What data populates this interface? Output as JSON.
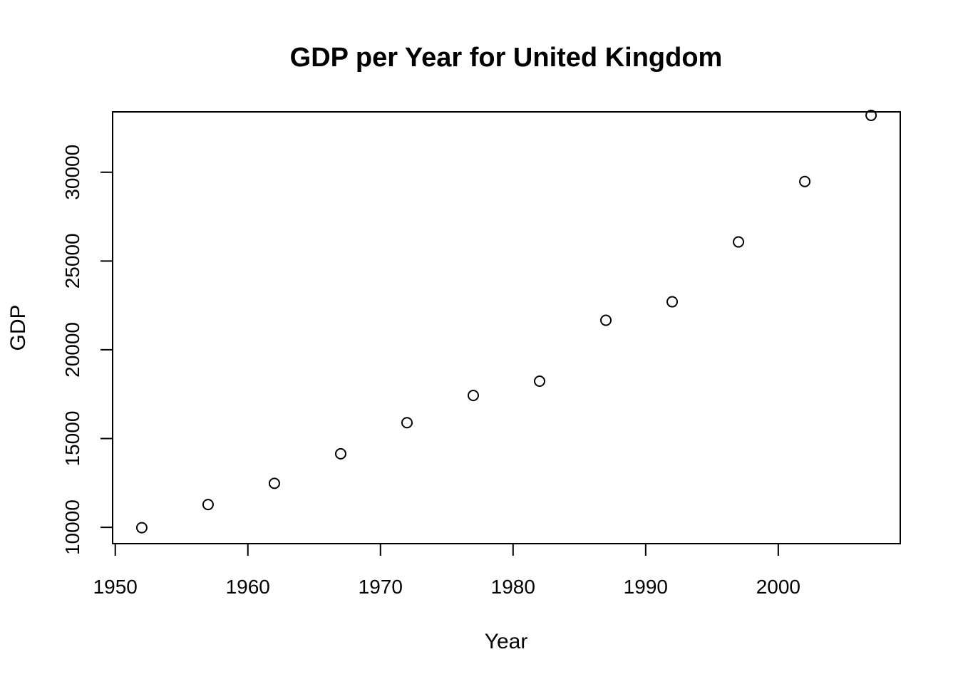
{
  "chart_data": {
    "type": "scatter",
    "title": "GDP per Year for United Kingdom",
    "xlabel": "Year",
    "ylabel": "GDP",
    "xlim": [
      1949.8,
      2009.2
    ],
    "ylim": [
      9082,
      33401
    ],
    "grid": false,
    "legend": "none",
    "x_ticks": [
      1950,
      1960,
      1970,
      1980,
      1990,
      2000
    ],
    "y_ticks": [
      10000,
      15000,
      20000,
      25000,
      30000
    ],
    "points": [
      {
        "x": 1952,
        "y": 9980
      },
      {
        "x": 1957,
        "y": 11283
      },
      {
        "x": 1962,
        "y": 12477
      },
      {
        "x": 1967,
        "y": 14143
      },
      {
        "x": 1972,
        "y": 15895
      },
      {
        "x": 1977,
        "y": 17429
      },
      {
        "x": 1982,
        "y": 18232
      },
      {
        "x": 1987,
        "y": 21664
      },
      {
        "x": 1992,
        "y": 22705
      },
      {
        "x": 1997,
        "y": 26075
      },
      {
        "x": 2002,
        "y": 29479
      },
      {
        "x": 2007,
        "y": 33203
      }
    ]
  }
}
